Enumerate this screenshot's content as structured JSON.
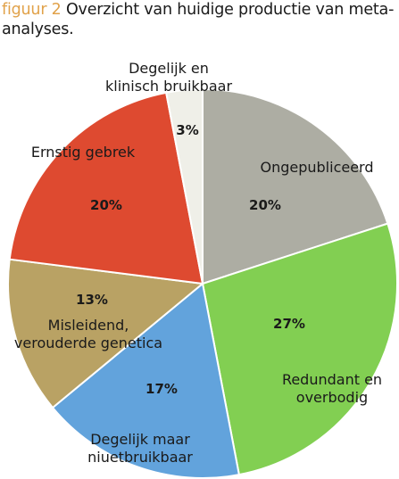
{
  "caption": {
    "figure_label": "figuur 2",
    "text": "Overzicht van huidige productie van meta-analyses."
  },
  "chart_data": {
    "type": "pie",
    "title": "Overzicht van huidige productie van meta-analyses.",
    "slices": [
      {
        "name_lines": [
          "Ongepubliceerd"
        ],
        "value": 20,
        "pct_label": "20%",
        "color": "#adada3"
      },
      {
        "name_lines": [
          "Redundant en",
          "overbodig"
        ],
        "value": 27,
        "pct_label": "27%",
        "color": "#82cf52"
      },
      {
        "name_lines": [
          "Degelijk maar",
          "niuetbruikbaar"
        ],
        "value": 17,
        "pct_label": "17%",
        "color": "#62a3dc"
      },
      {
        "name_lines": [
          "Misleidend,",
          "verouderde genetica"
        ],
        "value": 13,
        "pct_label": "13%",
        "color": "#b9a264"
      },
      {
        "name_lines": [
          "Ernstig gebrek"
        ],
        "value": 20,
        "pct_label": "20%",
        "color": "#de4a30"
      },
      {
        "name_lines": [
          "Degelijk en",
          "klinisch bruikbaar"
        ],
        "value": 3,
        "pct_label": "3%",
        "color": "#efefe8"
      }
    ]
  }
}
